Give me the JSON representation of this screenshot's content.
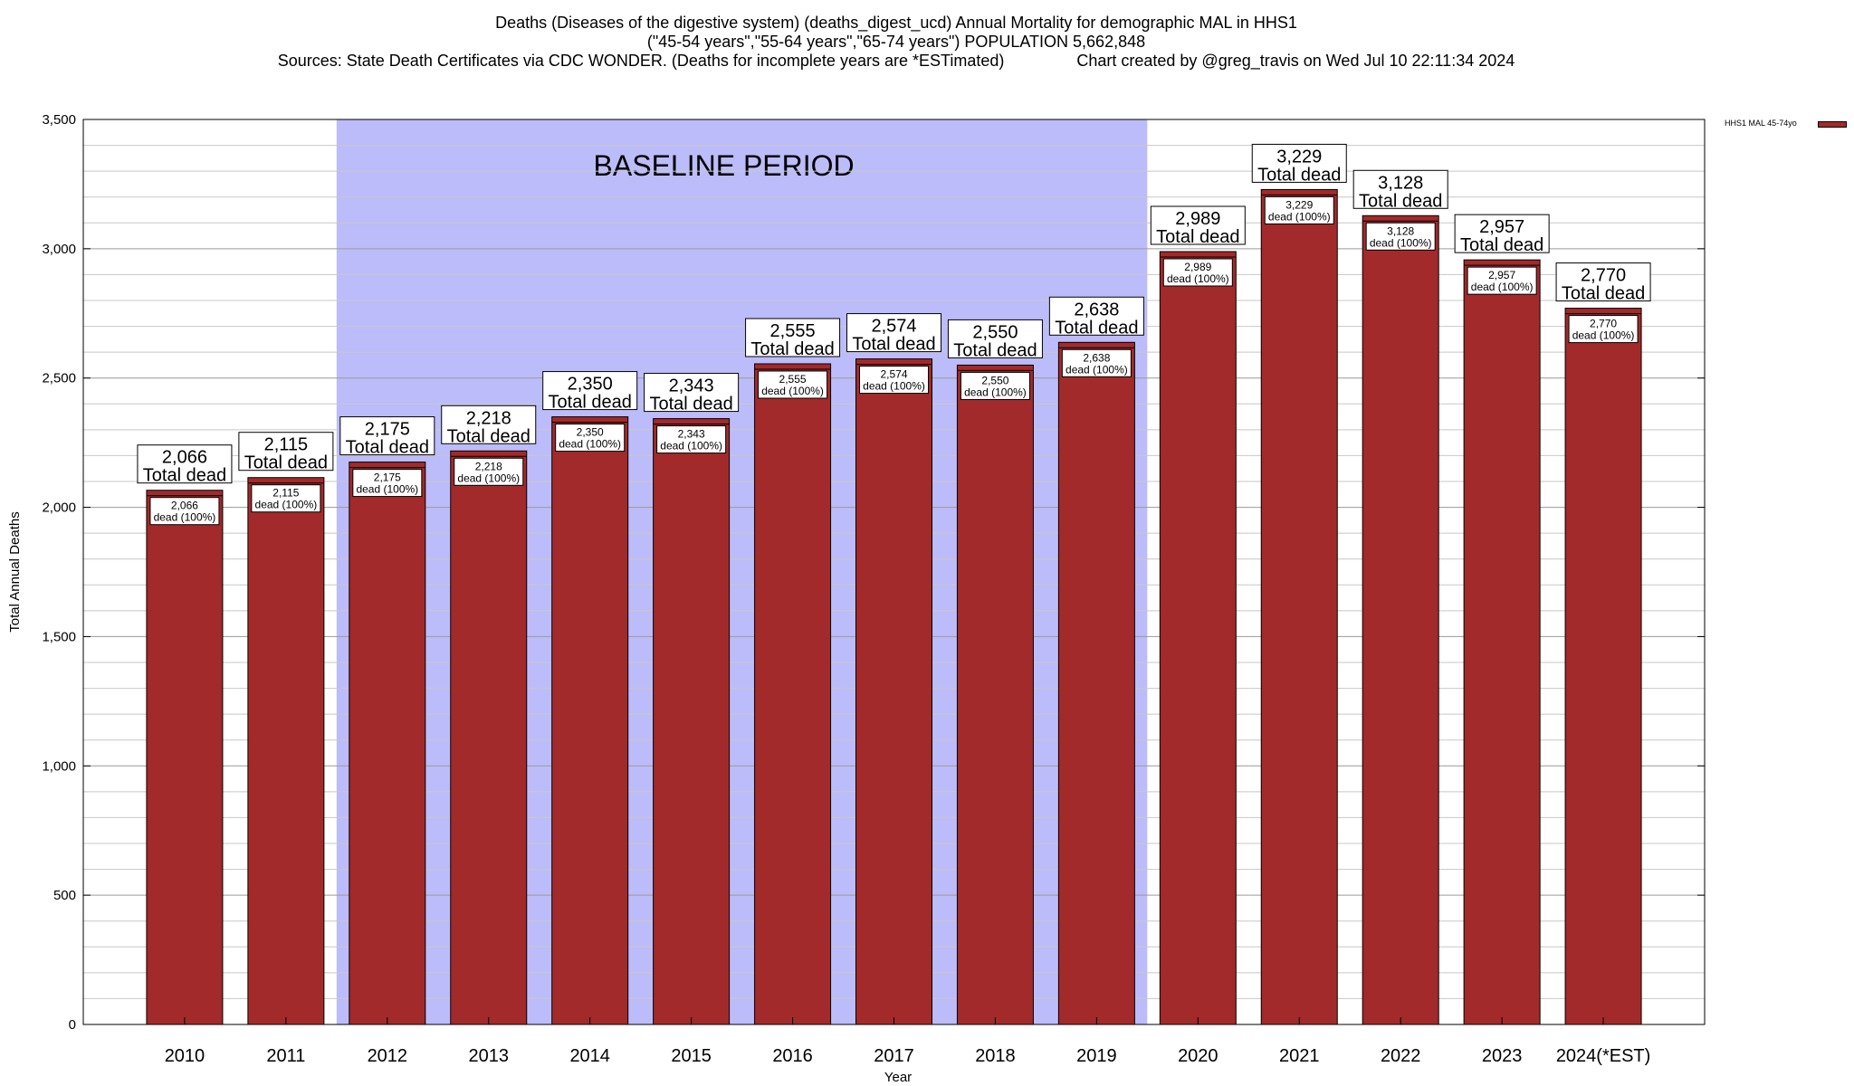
{
  "title": {
    "line1": "Deaths (Diseases of the digestive system) (deaths_digest_ucd) Annual Mortality for demographic MAL in HHS1",
    "line2": "(\"45-54 years\",\"55-64 years\",\"65-74 years\") POPULATION 5,662,848",
    "line3": "Sources: State Death Certificates via CDC WONDER. (Deaths for incomplete years are *ESTimated)                Chart created by @greg_travis on Wed Jul 10 22:11:34 2024"
  },
  "legend": {
    "label": "HHS1 MAL 45-74yo"
  },
  "colors": {
    "bar": "#a32a2a",
    "baseline": "#bcbcfa",
    "grid": "#c8c8c8"
  },
  "chart_data": {
    "type": "bar",
    "categories": [
      "2010",
      "2011",
      "2012",
      "2013",
      "2014",
      "2015",
      "2016",
      "2017",
      "2018",
      "2019",
      "2020",
      "2021",
      "2022",
      "2023",
      "2024(*EST)"
    ],
    "series": [
      {
        "name": "HHS1 MAL 45-74yo",
        "values": [
          2066,
          2115,
          2175,
          2218,
          2350,
          2343,
          2555,
          2574,
          2550,
          2638,
          2989,
          3229,
          3128,
          2957,
          2770
        ]
      }
    ],
    "value_labels": [
      "2,066",
      "2,115",
      "2,175",
      "2,218",
      "2,350",
      "2,343",
      "2,555",
      "2,574",
      "2,550",
      "2,638",
      "2,989",
      "3,229",
      "3,128",
      "2,957",
      "2,770"
    ],
    "top_label_suffix": "Total dead",
    "inner_label_suffix": "dead (100%)",
    "xlabel": "Year",
    "ylabel": "Total Annual Deaths",
    "ylim": [
      0,
      3500
    ],
    "yticks": [
      0,
      500,
      1000,
      1500,
      2000,
      2500,
      3000,
      3500
    ],
    "ytick_labels": [
      "0",
      "500",
      "1,000",
      "1,500",
      "2,000",
      "2,500",
      "3,000",
      "3,500"
    ],
    "minor_step": 100,
    "grid": true,
    "baseline_period": {
      "label": "BASELINE PERIOD",
      "from": "2012",
      "to": "2019"
    },
    "legend_position": "top-right"
  }
}
